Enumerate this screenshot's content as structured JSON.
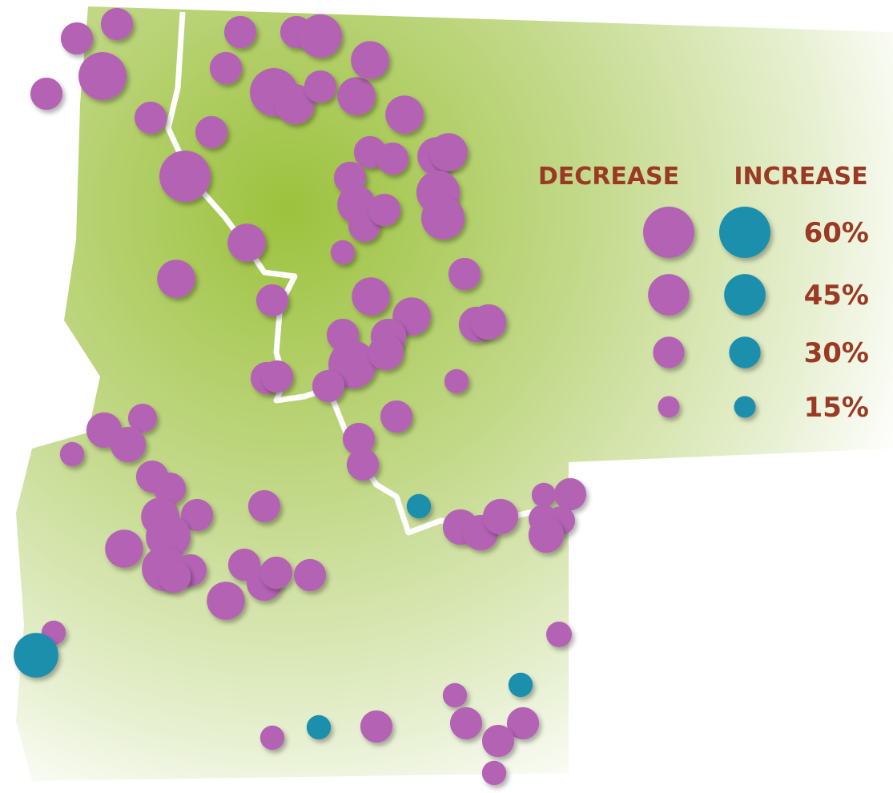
{
  "chart_data": {
    "type": "bubble-map",
    "series": [
      {
        "name": "DECREASE",
        "color": "#b463b4",
        "values": [
          31,
          31,
          55,
          31,
          31,
          60,
          31,
          31,
          31,
          31,
          48,
          55,
          43,
          31,
          40,
          40,
          40,
          31,
          31,
          40,
          40,
          31,
          48,
          48,
          40,
          31,
          31,
          19,
          40,
          40,
          31,
          40,
          40,
          31,
          36,
          36,
          31,
          36,
          55,
          36,
          31,
          31,
          31,
          19,
          31,
          36,
          26,
          36,
          19,
          31,
          31,
          31,
          31,
          31,
          40,
          31,
          50,
          40,
          50,
          31,
          31,
          31,
          36,
          31,
          31,
          40,
          36,
          36,
          36,
          19,
          31,
          26,
          26,
          36,
          21,
          19,
          19,
          31,
          31,
          31,
          19,
          19,
          31,
          31
        ]
      },
      {
        "name": "INCREASE",
        "color": "#1b8fac",
        "values": [
          19,
          50,
          19,
          19
        ]
      }
    ],
    "size_ticks": [
      {
        "value": 60,
        "label": "60%"
      },
      {
        "value": 45,
        "label": "45%"
      },
      {
        "value": 30,
        "label": "30%"
      },
      {
        "value": 15,
        "label": "15%"
      }
    ]
  }
}
